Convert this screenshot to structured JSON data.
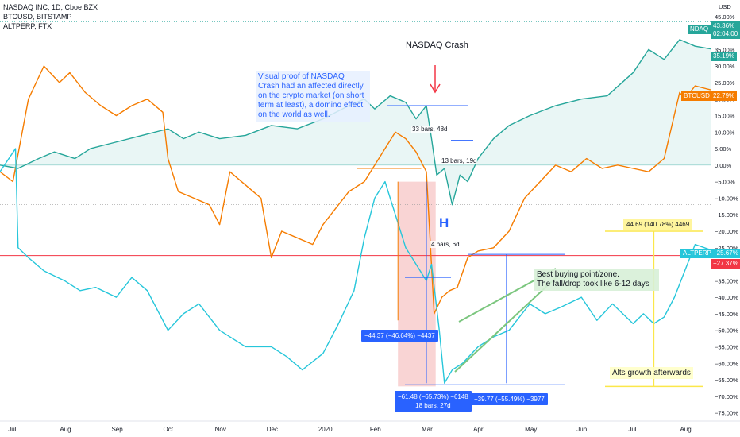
{
  "legend": {
    "line1": "NASDAQ INC, 1D, Cboe BZX",
    "line2": "BTCUSD, BITSTAMP",
    "line3": "ALTPERP, FTX"
  },
  "currency": "USD",
  "icon": "settings-icon",
  "colors": {
    "nasdaq": "#26a69a",
    "btc": "#f57c00",
    "alt": "#26c6da",
    "red": "#f23645",
    "blue": "#2962ff",
    "yellow": "#fbe74a",
    "green": "#7bc67e",
    "fill": "#e0f2f1",
    "drawdown": "#f5b7b7"
  },
  "annotations": {
    "title": "NASDAQ Crash",
    "note": "Visual proof of NASDAQ Crash had an affected directly on the crypto market (on short term at least), a domino effect on the world as well.",
    "bars1": "33 bars, 48d",
    "bars2": "13 bars, 19d",
    "bars3": "4 bars, 6d",
    "buy_line1": "Best buying point/zone.",
    "buy_line2": "The fall/drop took like 6-12 days",
    "alts": "Alts growth afterwards",
    "h_mark": "H",
    "box1": "−44.37 (−46.64%) −4437",
    "box2_line1": "−61.48 (−65.73%) −6148",
    "box2_line2": "18 bars, 27d",
    "box3": "−39.77 (−55.49%) −3977",
    "box4": "44.69 (140.78%) 4469"
  },
  "price_labels": {
    "nasdaq_name": "NDAQ",
    "nasdaq_value": "43.36%",
    "nasdaq_time": "02:04:00",
    "nasdaq_last": "35.19%",
    "btc_name": "BTCUSD",
    "btc_value": "22.79%",
    "alt_name": "ALTPERP",
    "alt_value": "−25.67%",
    "red_value": "−27.37%"
  },
  "chart_data": {
    "type": "line",
    "title": "NASDAQ INC, 1D, Cboe BZX",
    "ylabel": "%",
    "ylim": [
      -77.5,
      50
    ],
    "y_ticks": [
      "45.00%",
      "40.00%",
      "35.00%",
      "30.00%",
      "25.00%",
      "20.00%",
      "15.00%",
      "10.00%",
      "5.00%",
      "0.00%",
      "−5.00%",
      "−10.00%",
      "−15.00%",
      "−20.00%",
      "−25.00%",
      "−30.00%",
      "−35.00%",
      "−40.00%",
      "−45.00%",
      "−50.00%",
      "−55.00%",
      "−60.00%",
      "−65.00%",
      "−70.00%",
      "−75.00%"
    ],
    "y_tick_values": [
      45,
      40,
      35,
      30,
      25,
      20,
      15,
      10,
      5,
      0,
      -5,
      -10,
      -15,
      -20,
      -25,
      -30,
      -35,
      -40,
      -45,
      -50,
      -55,
      -60,
      -65,
      -70,
      -75
    ],
    "x_ticks": [
      "Jul",
      "Aug",
      "Sep",
      "Oct",
      "Nov",
      "Dec",
      "2020",
      "Feb",
      "Mar",
      "Apr",
      "May",
      "Jun",
      "Jul",
      "Aug"
    ],
    "x_tick_months": [
      0,
      1,
      2,
      3,
      4,
      5,
      6,
      7,
      8,
      9,
      10,
      11,
      12,
      13
    ],
    "x_unit": "months since Jul 2019",
    "x_range": [
      -0.25,
      13.5
    ],
    "series": [
      {
        "name": "NASDAQ INC",
        "x": [
          -0.25,
          0.1,
          0.5,
          0.8,
          1.2,
          1.5,
          2.0,
          2.5,
          3.0,
          3.3,
          3.6,
          4.0,
          4.5,
          5.0,
          5.5,
          6.0,
          6.5,
          6.8,
          7.0,
          7.3,
          7.6,
          7.8,
          8.0,
          8.1,
          8.2,
          8.35,
          8.5,
          8.65,
          8.8,
          9.0,
          9.3,
          9.6,
          10.0,
          10.5,
          11.0,
          11.5,
          12.0,
          12.3,
          12.6,
          12.9,
          13.2,
          13.5
        ],
        "values": [
          0,
          -1,
          2,
          4,
          2,
          5,
          7,
          9,
          11,
          8,
          10,
          8,
          9,
          12,
          11,
          14,
          18,
          20,
          17,
          21,
          19,
          14,
          18,
          8,
          -3,
          -1,
          -12,
          -3,
          -5,
          2,
          8,
          12,
          15,
          18,
          20,
          21,
          28,
          35,
          32,
          38,
          36,
          35.19
        ]
      },
      {
        "name": "BTCUSD",
        "x": [
          -0.25,
          0.0,
          0.3,
          0.6,
          0.9,
          1.1,
          1.4,
          1.7,
          2.0,
          2.3,
          2.6,
          2.9,
          3.0,
          3.2,
          3.5,
          3.8,
          4.0,
          4.2,
          4.5,
          4.8,
          5.0,
          5.2,
          5.5,
          5.8,
          6.0,
          6.3,
          6.5,
          6.8,
          7.0,
          7.2,
          7.4,
          7.6,
          7.8,
          8.0,
          8.15,
          8.3,
          8.45,
          8.6,
          8.8,
          9.0,
          9.3,
          9.6,
          9.9,
          10.2,
          10.5,
          10.8,
          11.1,
          11.4,
          11.7,
          12.0,
          12.3,
          12.6,
          12.9,
          13.0,
          13.2,
          13.5
        ],
        "values": [
          -2,
          -5,
          20,
          30,
          25,
          28,
          22,
          18,
          15,
          18,
          20,
          16,
          2,
          -8,
          -10,
          -12,
          -18,
          -2,
          -6,
          -10,
          -28,
          -20,
          -22,
          -24,
          -18,
          -12,
          -8,
          -5,
          0,
          5,
          10,
          8,
          4,
          -2,
          -45,
          -40,
          -38,
          -37,
          -28,
          -26,
          -25,
          -20,
          -10,
          -5,
          0,
          -2,
          2,
          -1,
          0,
          -1,
          -2,
          2,
          22,
          20,
          24,
          22.79
        ]
      },
      {
        "name": "ALTPERP",
        "x": [
          -0.25,
          0.05,
          0.1,
          0.3,
          0.6,
          1.0,
          1.3,
          1.6,
          2.0,
          2.3,
          2.6,
          3.0,
          3.3,
          3.6,
          4.0,
          4.5,
          5.0,
          5.3,
          5.6,
          6.0,
          6.3,
          6.6,
          6.8,
          7.0,
          7.2,
          7.4,
          7.6,
          7.8,
          8.0,
          8.1,
          8.25,
          8.35,
          8.5,
          8.7,
          9.0,
          9.3,
          9.6,
          10.0,
          10.3,
          10.6,
          11.0,
          11.3,
          11.6,
          12.0,
          12.2,
          12.4,
          12.6,
          12.8,
          13.0,
          13.2,
          13.5
        ],
        "values": [
          -2,
          5,
          -25,
          -28,
          -32,
          -35,
          -38,
          -37,
          -40,
          -34,
          -38,
          -50,
          -45,
          -42,
          -50,
          -55,
          -55,
          -58,
          -62,
          -57,
          -48,
          -38,
          -22,
          -10,
          -5,
          -15,
          -25,
          -30,
          -35,
          -30,
          -50,
          -66,
          -62,
          -60,
          -55,
          -52,
          -50,
          -42,
          -45,
          -43,
          -40,
          -47,
          -42,
          -48,
          -45,
          -48,
          -46,
          -40,
          -32,
          -24,
          -25.67
        ]
      }
    ],
    "drawdown_zone": {
      "x_start": 7.45,
      "x_end": 8.18
    },
    "red_level": -27.37
  }
}
